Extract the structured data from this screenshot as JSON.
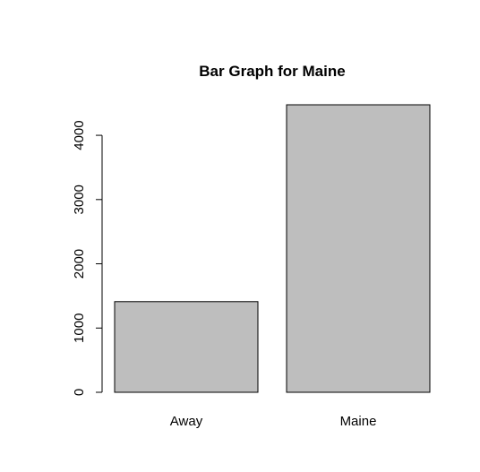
{
  "chart_data": {
    "type": "bar",
    "title": "Bar Graph for Maine",
    "xlabel": "",
    "ylabel": "",
    "categories": [
      "Away",
      "Maine"
    ],
    "values": [
      1411,
      4475
    ],
    "ylim": [
      0,
      4475
    ],
    "yticks": [
      0,
      1000,
      2000,
      3000,
      4000
    ],
    "ytick_labels": [
      "0",
      "1000",
      "2000",
      "3000",
      "4000"
    ],
    "grid": false,
    "legend": "none",
    "colors": {
      "bar_fill": "#bebebe",
      "bar_stroke": "#000000",
      "axis": "#000000",
      "text": "#000000"
    }
  }
}
